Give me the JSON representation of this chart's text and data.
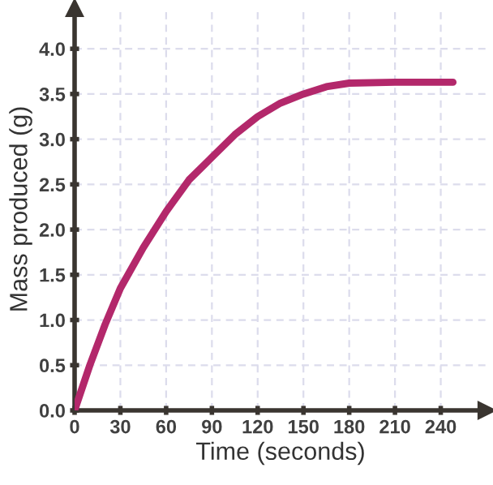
{
  "chart_data": {
    "type": "line",
    "xlabel": "Time (seconds)",
    "ylabel": "Mass produced (g)",
    "series": [
      {
        "color": "#b3286b",
        "x": [
          0,
          10,
          20,
          30,
          45,
          60,
          75,
          90,
          105,
          120,
          135,
          150,
          165,
          180,
          210,
          248
        ],
        "values": [
          0,
          0.5,
          0.95,
          1.35,
          1.8,
          2.2,
          2.55,
          2.8,
          3.05,
          3.25,
          3.4,
          3.5,
          3.58,
          3.62,
          3.63,
          3.63
        ]
      }
    ],
    "xlim": [
      0,
      270
    ],
    "ylim": [
      0,
      4.45
    ],
    "xticks": [
      0,
      30,
      60,
      90,
      120,
      150,
      180,
      210,
      240
    ],
    "yticks": [
      {
        "value": 0,
        "label": "0.0"
      },
      {
        "value": 0.5,
        "label": "0.5"
      },
      {
        "value": 1,
        "label": "1.0"
      },
      {
        "value": 1.5,
        "label": "1.5"
      },
      {
        "value": 2,
        "label": "2.0"
      },
      {
        "value": 2.5,
        "label": "2.5"
      },
      {
        "value": 3,
        "label": "3.0"
      },
      {
        "value": 3.5,
        "label": "3.5"
      },
      {
        "value": 4,
        "label": "4.0"
      }
    ],
    "grid": true,
    "line_style": "solid",
    "marker": "none"
  }
}
